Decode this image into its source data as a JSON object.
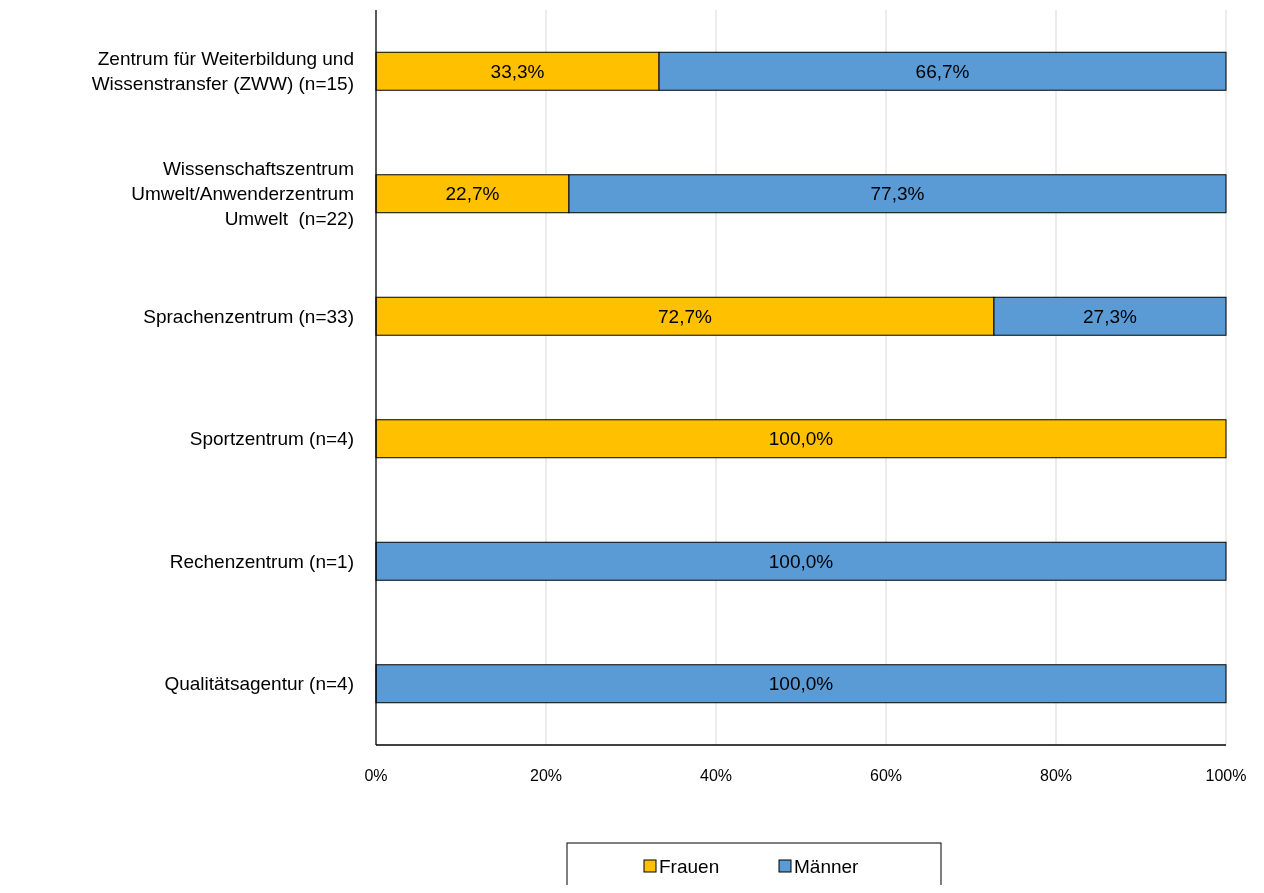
{
  "chart_data": {
    "type": "bar",
    "orientation": "horizontal",
    "stacked": true,
    "categories": [
      "Zentrum für Weiterbildung und\nWissenstransfer (ZWW) (n=15)",
      "Wissenschaftszentrum\nUmwelt/Anwenderzentrum\nUmwelt  (n=22)",
      "Sprachenzentrum (n=33)",
      "Sportzentrum (n=4)",
      "Rechenzentrum (n=1)",
      "Qualitätsagentur (n=4)"
    ],
    "series": [
      {
        "name": "Frauen",
        "color": "#ffc000",
        "values": [
          33.3,
          22.7,
          72.7,
          100,
          0,
          0
        ],
        "value_labels": [
          "33,3%",
          "22,7%",
          "72,7%",
          "100,0%",
          null,
          null
        ]
      },
      {
        "name": "Männer",
        "color": "#5b9bd5",
        "values": [
          66.7,
          77.3,
          27.3,
          0,
          100,
          100
        ],
        "value_labels": [
          "66,7%",
          "77,3%",
          "27,3%",
          null,
          "100,0%",
          "100,0%"
        ]
      }
    ],
    "xlim": [
      0,
      100
    ],
    "xticks": [
      {
        "value": 0,
        "label": "0%"
      },
      {
        "value": 20,
        "label": "20%"
      },
      {
        "value": 40,
        "label": "40%"
      },
      {
        "value": 60,
        "label": "60%"
      },
      {
        "value": 80,
        "label": "80%"
      },
      {
        "value": 100,
        "label": "100%"
      }
    ],
    "grid": "x",
    "legend": "bottom"
  }
}
